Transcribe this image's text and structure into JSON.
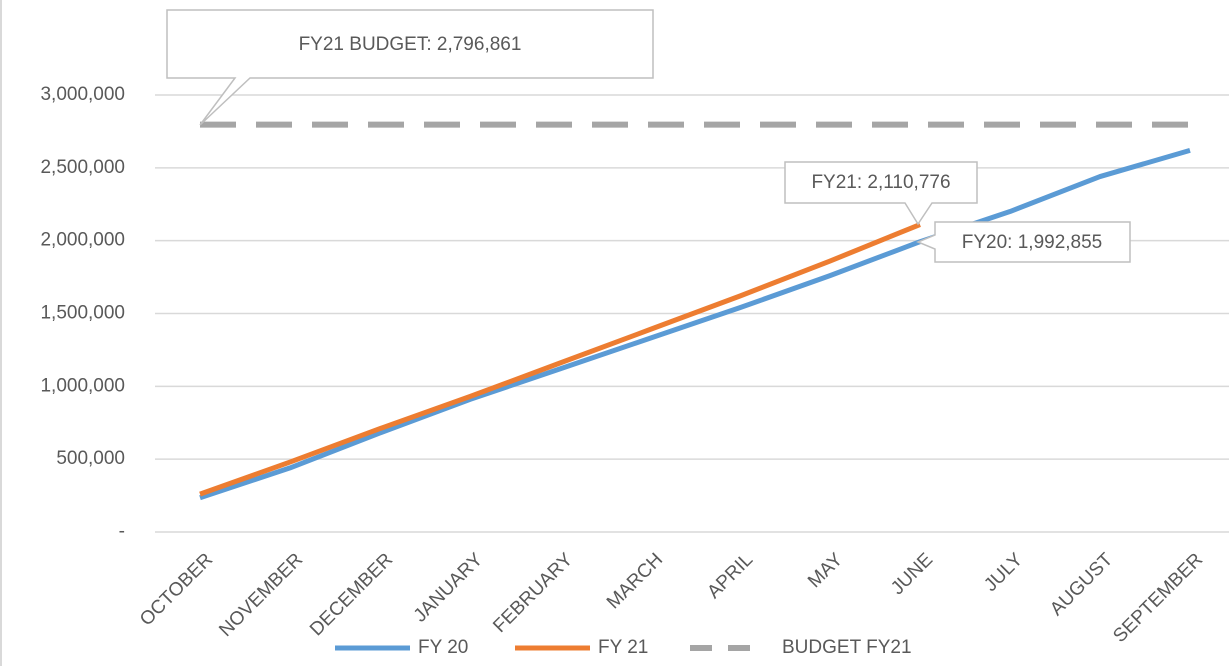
{
  "chart_data": {
    "type": "line",
    "categories": [
      "OCTOBER",
      "NOVEMBER",
      "DECEMBER",
      "JANUARY",
      "FEBRUARY",
      "MARCH",
      "APRIL",
      "MAY",
      "JUNE",
      "JULY",
      "AUGUST",
      "SEPTEMBER"
    ],
    "series": [
      {
        "name": "FY 20",
        "color": "#5b9bd5",
        "values": [
          235000,
          440000,
          680000,
          910000,
          1120000,
          1330000,
          1540000,
          1760000,
          1992855,
          2200000,
          2440000,
          2620000
        ],
        "value_labels": [
          null,
          null,
          null,
          null,
          null,
          null,
          null,
          null,
          "FY20: 1,992,855",
          null,
          null,
          null
        ]
      },
      {
        "name": "FY 21",
        "color": "#ed7d31",
        "values": [
          260000,
          480000,
          710000,
          930000,
          1160000,
          1390000,
          1620000,
          1860000,
          2110776,
          null,
          null,
          null
        ],
        "value_labels": [
          null,
          null,
          null,
          null,
          null,
          null,
          null,
          null,
          "FY21: 2,110,776",
          null,
          null,
          null
        ]
      },
      {
        "name": "BUDGET FY21",
        "color": "#a5a5a5",
        "dashed": true,
        "values": [
          2796861,
          2796861,
          2796861,
          2796861,
          2796861,
          2796861,
          2796861,
          2796861,
          2796861,
          2796861,
          2796861,
          2796861
        ],
        "value_labels": [
          "FY21 BUDGET: 2,796,861",
          null,
          null,
          null,
          null,
          null,
          null,
          null,
          null,
          null,
          null,
          null
        ]
      }
    ],
    "ylim": [
      0,
      3000000
    ],
    "yticks": [
      {
        "value": 0,
        "label": "-"
      },
      {
        "value": 500000,
        "label": "500,000"
      },
      {
        "value": 1000000,
        "label": "1,000,000"
      },
      {
        "value": 1500000,
        "label": "1,500,000"
      },
      {
        "value": 2000000,
        "label": "2,000,000"
      },
      {
        "value": 2500000,
        "label": "2,500,000"
      },
      {
        "value": 3000000,
        "label": "3,000,000"
      }
    ],
    "grid": true,
    "legend": "bottom"
  }
}
